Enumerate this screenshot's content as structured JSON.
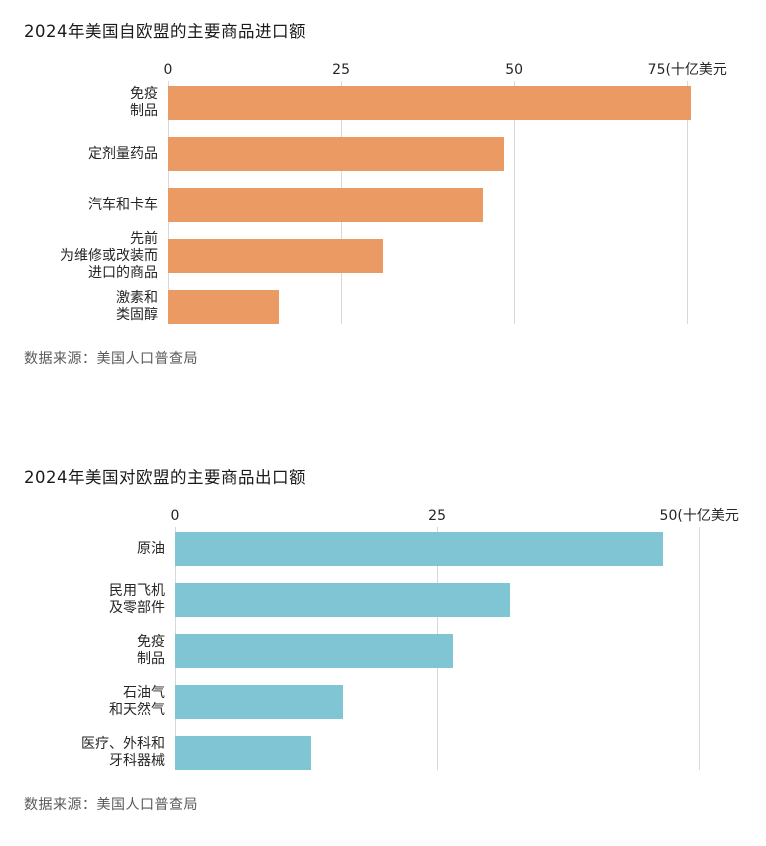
{
  "chart_data": [
    {
      "type": "bar",
      "orientation": "horizontal",
      "title": "2024年美国自欧盟的主要商品进口额",
      "unit": "十亿美元",
      "categories": [
        "免疫制品",
        "定剂量药品",
        "汽车和卡车",
        "先前为维修或改装而进口的商品",
        "激素和类固醇"
      ],
      "label_lines": [
        "免疫\n制品",
        "定剂量药品",
        "汽车和卡车",
        "先前\n为维修或改装而\n进口的商品",
        "激素和\n类固醇"
      ],
      "values": [
        75.5,
        48.5,
        45.5,
        31,
        16
      ],
      "ticks": [
        0,
        25,
        50,
        75
      ],
      "tick_labels": [
        "0",
        "25",
        "50",
        "75(十亿美元"
      ],
      "xlim": [
        0,
        85.5
      ],
      "bar_color": "#EC9A63",
      "grid": true,
      "legend": false,
      "source": "数据来源：美国人口普查局"
    },
    {
      "type": "bar",
      "orientation": "horizontal",
      "title": "2024年美国对欧盟的主要商品出口额",
      "unit": "十亿美元",
      "categories": [
        "原油",
        "民用飞机及零部件",
        "免疫制品",
        "石油气和天然气",
        "医疗、外科和牙科器械"
      ],
      "label_lines": [
        "原油",
        "民用飞机\n及零部件",
        "免疫\n制品",
        "石油气\n和天然气",
        "医疗、外科和\n牙科器械"
      ],
      "values": [
        46.5,
        32,
        26.5,
        16,
        13
      ],
      "ticks": [
        0,
        25,
        50
      ],
      "tick_labels": [
        "0",
        "25",
        "50(十亿美元"
      ],
      "xlim": [
        0,
        55.8
      ],
      "bar_color": "#7FC5D4",
      "grid": true,
      "legend": false,
      "source": "数据来源：美国人口普查局"
    }
  ]
}
